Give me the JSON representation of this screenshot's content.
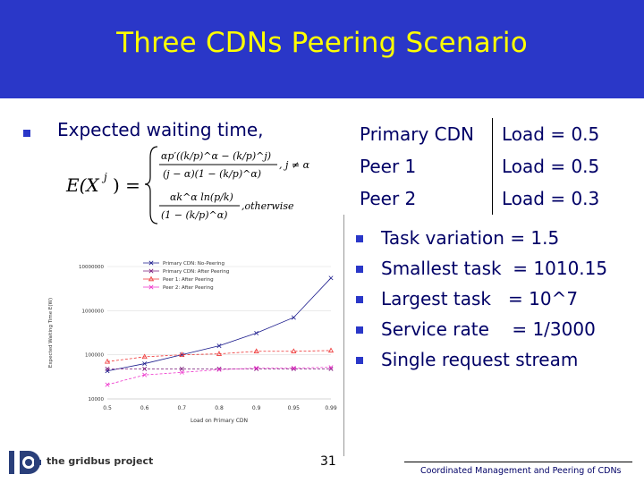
{
  "slide": {
    "title": "Three CDNs Peering Scenario",
    "lead_text": "Expected waiting time,",
    "page_number": "31",
    "footer_text": "Coordinated Management and Peering of CDNs",
    "logo_text": "the gridbus project",
    "accent_color": "#2a37c8",
    "title_color": "#ffff00"
  },
  "formula": {
    "lhs": "E(X",
    "lhs_sup": "j",
    "lhs_close": ") =",
    "case1_num": "αp′((k/p)^α − (k/p)^j)",
    "case1_den": "(j − α)(1 − (k/p)^α)",
    "case1_cond": ", j ≠ α",
    "case2_num": "αk^α ln(p/k)",
    "case2_den": "(1 − (k/p)^α)",
    "case2_cond": ",otherwise"
  },
  "load_table": [
    {
      "name": "Primary CDN",
      "load": "Load = 0.5"
    },
    {
      "name": "Peer 1",
      "load": "Load = 0.5"
    },
    {
      "name": "Peer 2",
      "load": "Load = 0.3"
    }
  ],
  "params": [
    {
      "text": "Task variation = 1.5"
    },
    {
      "text": "Smallest task  = 1010.15"
    },
    {
      "text": "Largest task   = 10^7"
    },
    {
      "text": "Service rate    = 1/3000"
    },
    {
      "text": "Single request stream"
    }
  ],
  "chart_data": {
    "type": "line",
    "xlabel": "Load on Primary CDN",
    "ylabel": "Expected Waiting Time E(W)",
    "categories": [
      "0.5",
      "0.6",
      "0.7",
      "0.8",
      "0.9",
      "0.95",
      "0.99"
    ],
    "y_scale": "log",
    "ylim": [
      10000,
      10000000
    ],
    "yticks": [
      "10000000",
      "1000000",
      "100000",
      "10000"
    ],
    "legend_position": "top-left",
    "series": [
      {
        "name": "Primary CDN: No-Peering",
        "color": "#1a1a8c",
        "marker": "x",
        "values": [
          43000,
          63000,
          100000,
          160000,
          310000,
          700000,
          5500000
        ]
      },
      {
        "name": "Primary CDN: After Peering",
        "color": "#7a1a7a",
        "marker": "x",
        "values": [
          48000,
          48000,
          48000,
          48000,
          48000,
          48000,
          48000
        ]
      },
      {
        "name": "Peer 1: After Peering",
        "color": "#ee3333",
        "marker": "triangle",
        "values": [
          70000,
          90000,
          100000,
          105000,
          120000,
          120000,
          125000
        ]
      },
      {
        "name": "Peer 2: After Peering",
        "color": "#ee33cc",
        "marker": "x",
        "values": [
          21000,
          35000,
          40000,
          46000,
          50000,
          50000,
          52000
        ]
      }
    ]
  }
}
